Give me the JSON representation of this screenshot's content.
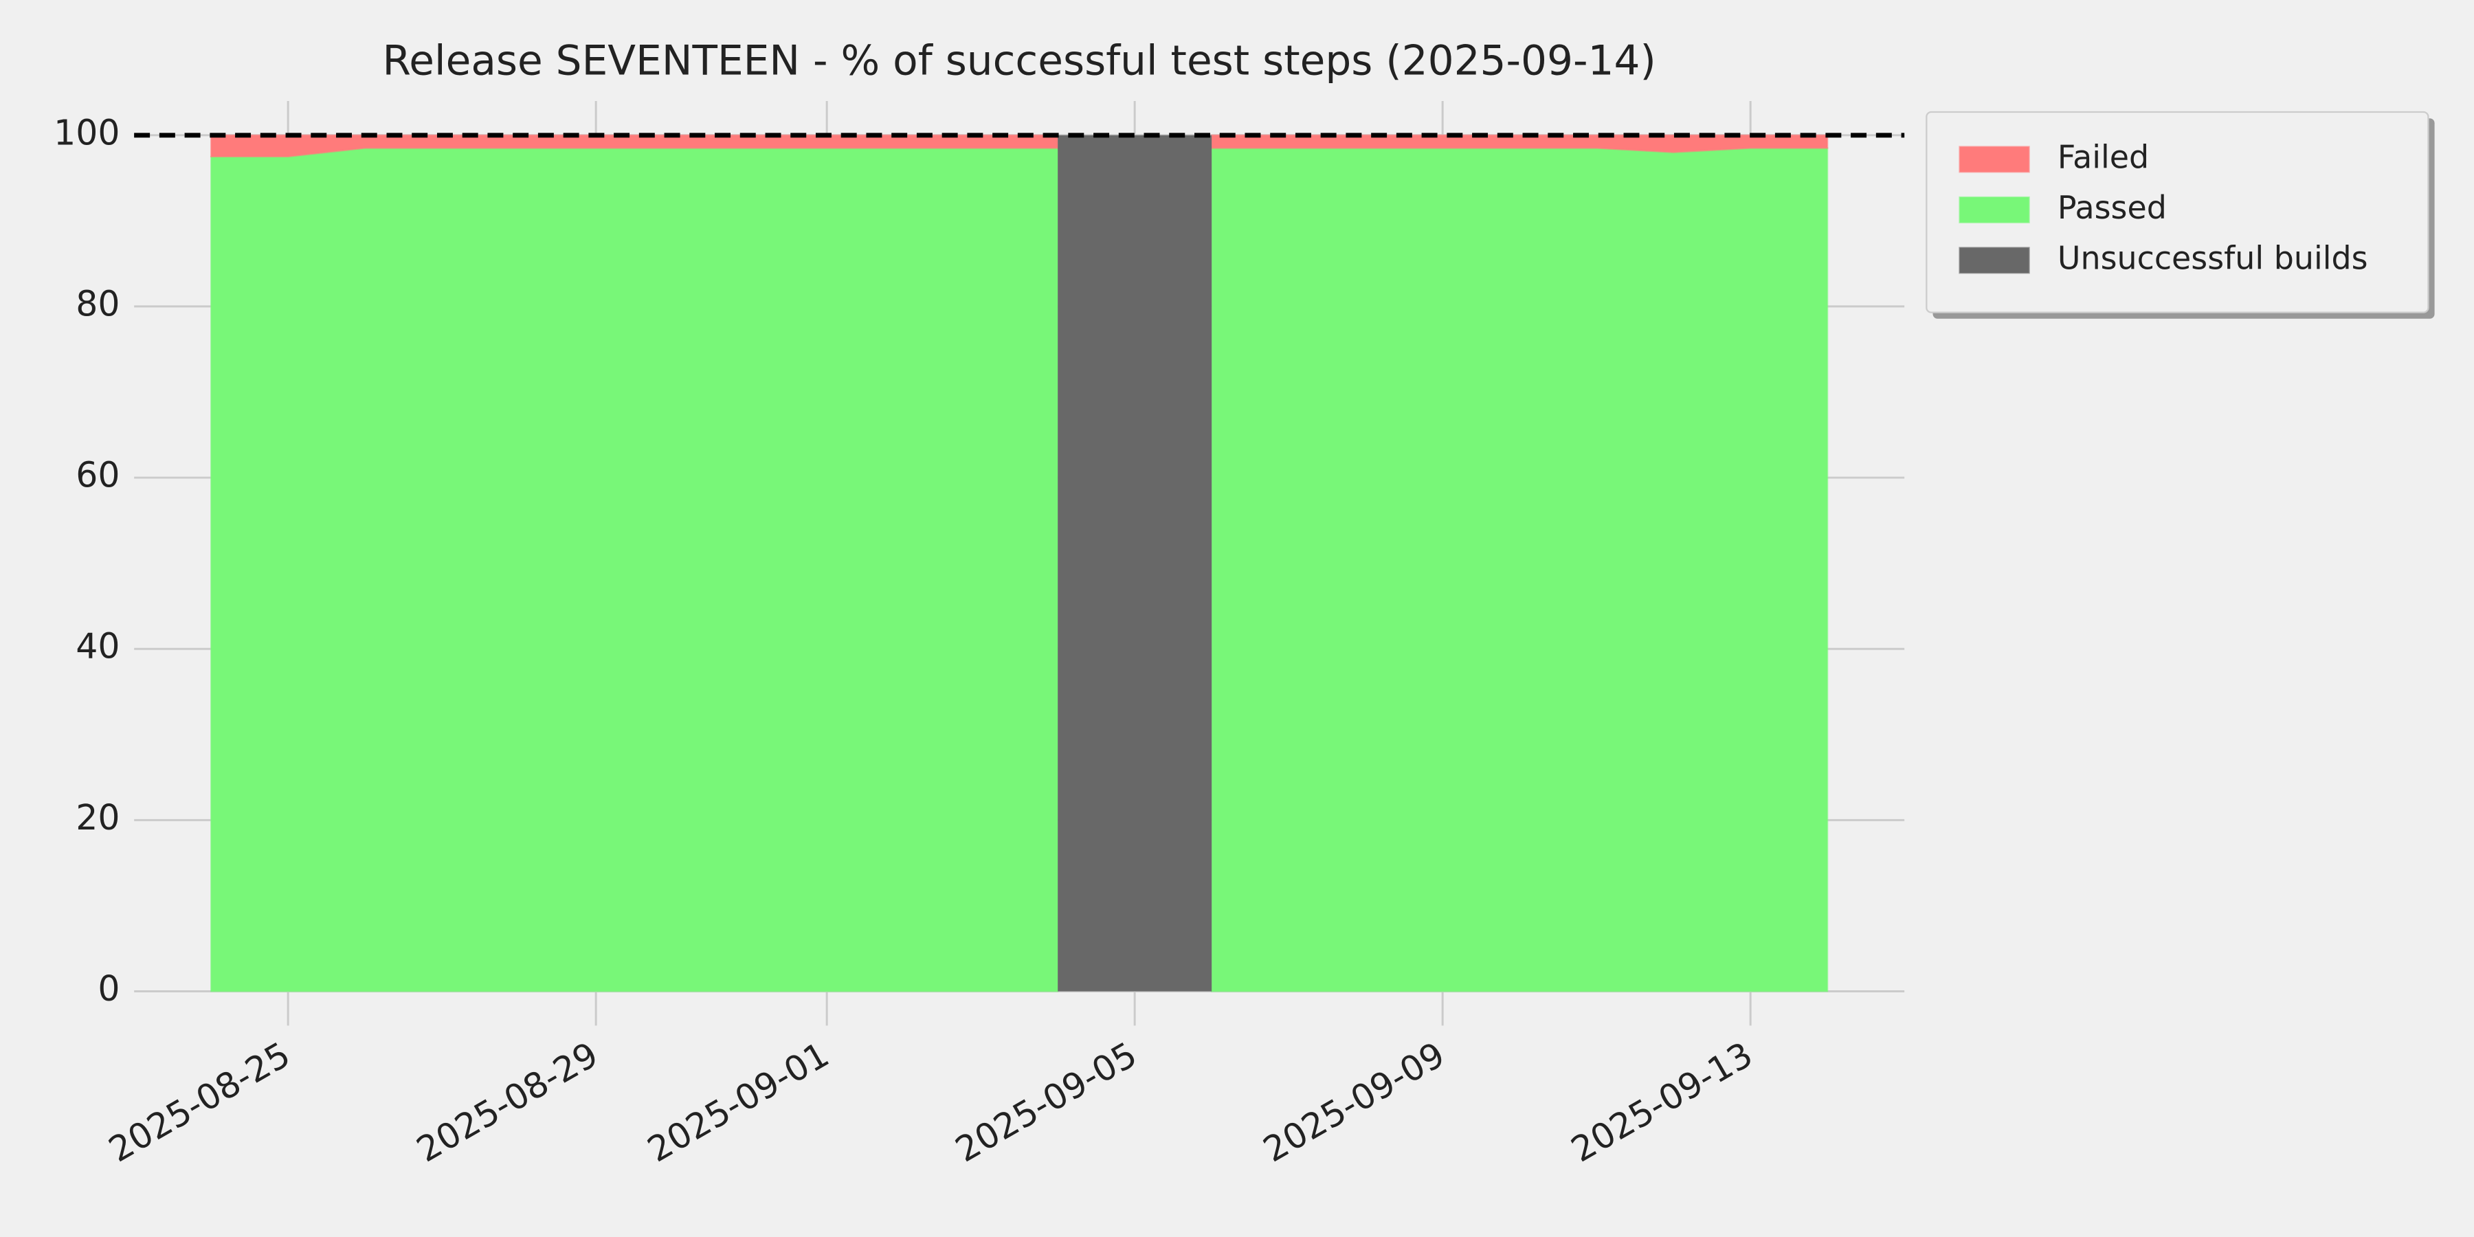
{
  "chart_data": {
    "type": "stacked-area",
    "title": "Release SEVENTEEN - % of successful test steps (2025-09-14)",
    "x": [
      "2025-08-24",
      "2025-08-25",
      "2025-08-26",
      "2025-08-27",
      "2025-08-28",
      "2025-08-29",
      "2025-08-30",
      "2025-08-31",
      "2025-09-01",
      "2025-09-02",
      "2025-09-03",
      "2025-09-04",
      "2025-09-05",
      "2025-09-06",
      "2025-09-07",
      "2025-09-08",
      "2025-09-09",
      "2025-09-10",
      "2025-09-11",
      "2025-09-12",
      "2025-09-13",
      "2025-09-14"
    ],
    "series": [
      {
        "name": "Passed",
        "color": "#78f778",
        "values": [
          97.5,
          97.5,
          98.5,
          98.5,
          98.5,
          98.5,
          98.5,
          98.5,
          98.5,
          98.5,
          98.5,
          98.5,
          null,
          98.5,
          98.5,
          98.5,
          98.5,
          98.5,
          98.5,
          98,
          98.5,
          98.5
        ]
      },
      {
        "name": "Failed",
        "color": "#ff7b7b",
        "values": [
          2.5,
          2.5,
          1.5,
          1.5,
          1.5,
          1.5,
          1.5,
          1.5,
          1.5,
          1.5,
          1.5,
          1.5,
          null,
          1.5,
          1.5,
          1.5,
          1.5,
          1.5,
          1.5,
          2,
          1.5,
          1.5
        ]
      },
      {
        "name": "Unsuccessful builds",
        "color": "#686868",
        "values": [
          null,
          null,
          null,
          null,
          null,
          null,
          null,
          null,
          null,
          null,
          null,
          null,
          100,
          null,
          null,
          null,
          null,
          null,
          null,
          null,
          null,
          null
        ]
      }
    ],
    "legend_order": [
      1,
      0,
      2
    ],
    "threshold": 100,
    "xlim": [
      "2025-08-23",
      "2025-09-15"
    ],
    "xticks": [
      "2025-08-25",
      "2025-08-29",
      "2025-09-01",
      "2025-09-05",
      "2025-09-09",
      "2025-09-13"
    ],
    "ylim": [
      -4,
      104
    ],
    "yticks": [
      0,
      20,
      40,
      60,
      80,
      100
    ],
    "grid": true
  }
}
